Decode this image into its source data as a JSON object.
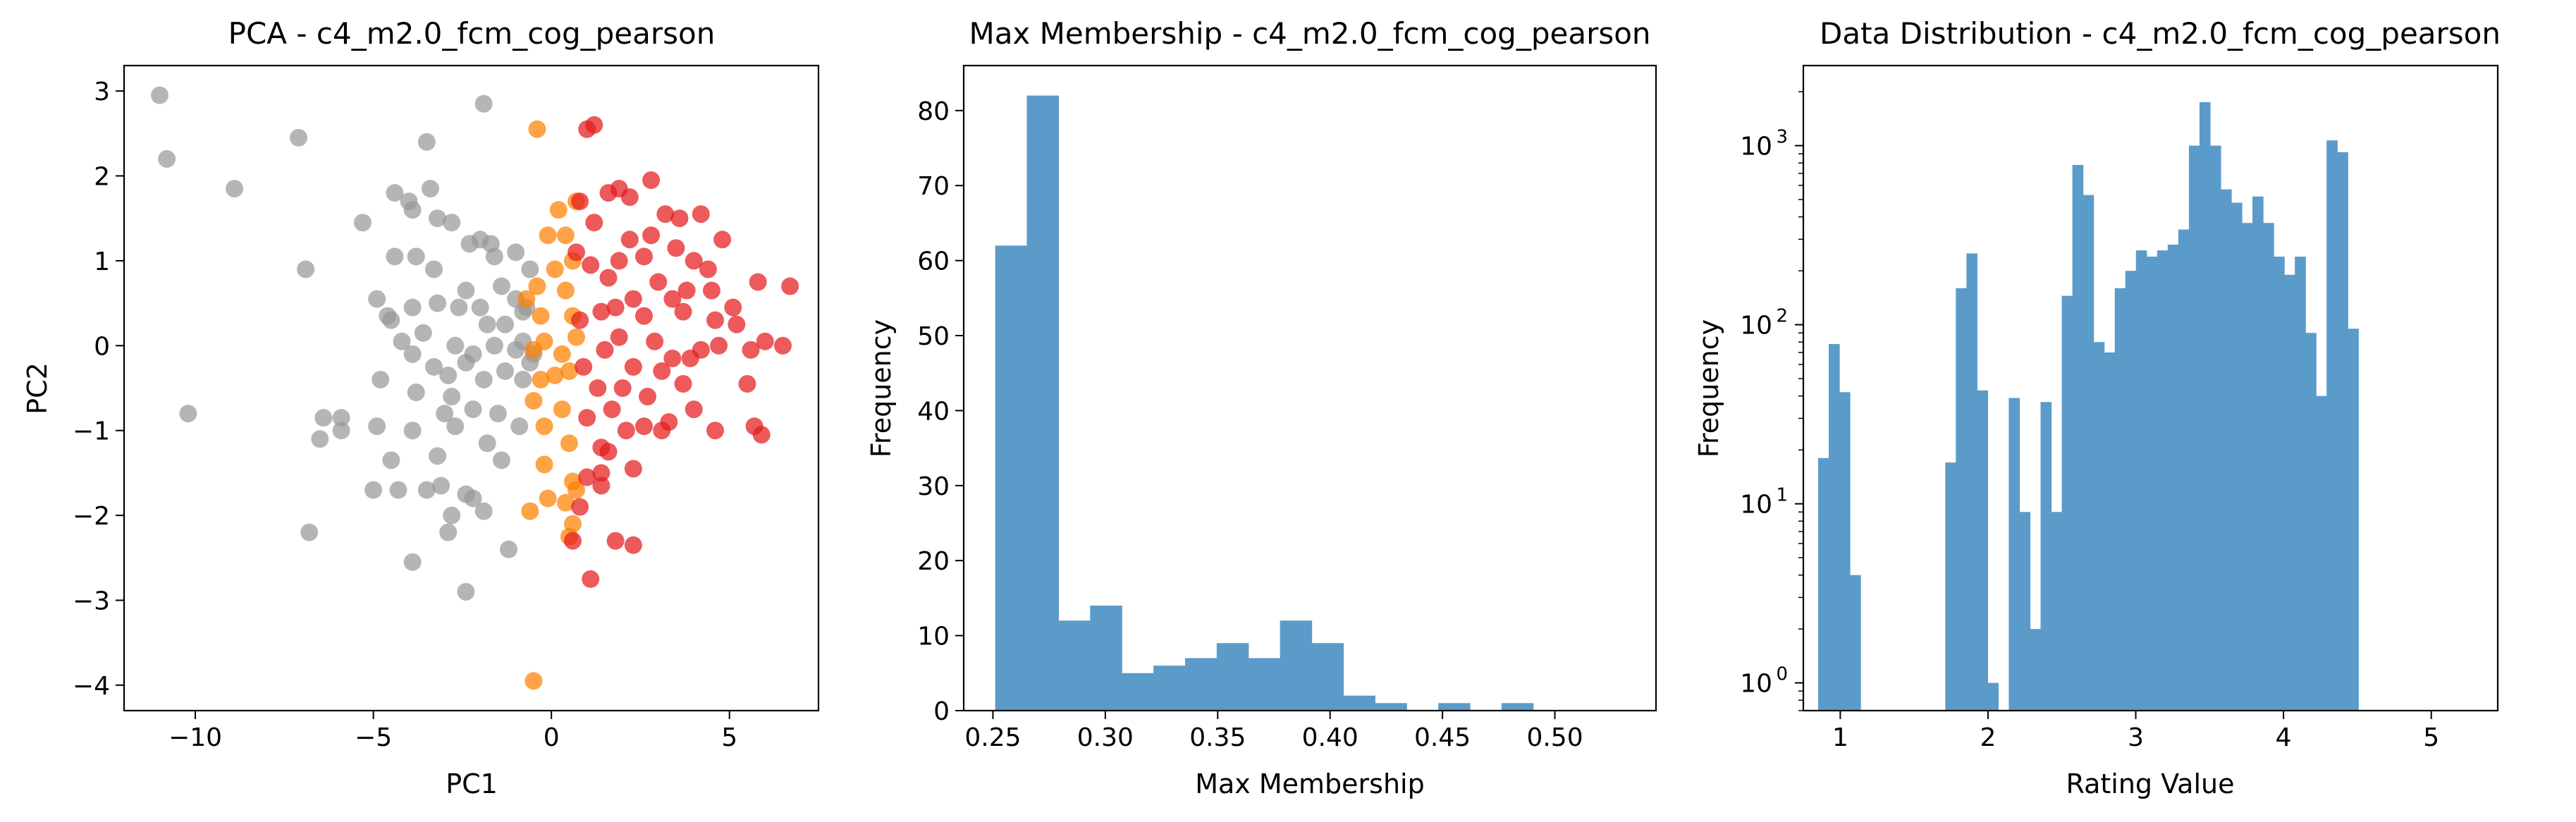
{
  "colors": {
    "cluster_red": "#e41a1c",
    "cluster_orange": "#ff7f00",
    "cluster_gray": "#999999",
    "bar_blue": "#5b9bc9",
    "axis": "#000000"
  },
  "chart_data": [
    {
      "type": "scatter",
      "title": "PCA - c4_m2.0_fcm_cog_pearson",
      "xlabel": "PC1",
      "ylabel": "PC2",
      "xlim": [
        -12,
        7.5
      ],
      "ylim": [
        -4.3,
        3.3
      ],
      "xticks": [
        -10,
        -5,
        0,
        5
      ],
      "yticks": [
        -4,
        -3,
        -2,
        -1,
        0,
        1,
        2,
        3
      ],
      "series": [
        {
          "color": "#e41a1c",
          "points": [
            [
              1.2,
              2.6
            ],
            [
              1.0,
              2.55
            ],
            [
              2.8,
              1.95
            ],
            [
              2.2,
              1.75
            ],
            [
              0.8,
              1.7
            ],
            [
              1.6,
              1.8
            ],
            [
              1.9,
              1.85
            ],
            [
              4.8,
              1.25
            ],
            [
              3.2,
              1.55
            ],
            [
              3.6,
              1.5
            ],
            [
              4.2,
              1.55
            ],
            [
              1.2,
              1.45
            ],
            [
              2.2,
              1.25
            ],
            [
              3.5,
              1.15
            ],
            [
              4.0,
              1.0
            ],
            [
              2.6,
              1.05
            ],
            [
              0.7,
              1.1
            ],
            [
              1.9,
              1.0
            ],
            [
              2.8,
              1.3
            ],
            [
              1.6,
              0.8
            ],
            [
              1.1,
              0.95
            ],
            [
              3.0,
              0.75
            ],
            [
              4.4,
              0.9
            ],
            [
              3.8,
              0.65
            ],
            [
              5.8,
              0.75
            ],
            [
              6.7,
              0.7
            ],
            [
              1.8,
              0.45
            ],
            [
              2.3,
              0.55
            ],
            [
              3.4,
              0.55
            ],
            [
              4.5,
              0.65
            ],
            [
              5.1,
              0.45
            ],
            [
              1.4,
              0.4
            ],
            [
              2.6,
              0.35
            ],
            [
              3.7,
              0.4
            ],
            [
              4.6,
              0.3
            ],
            [
              5.2,
              0.25
            ],
            [
              6.0,
              0.05
            ],
            [
              0.8,
              0.3
            ],
            [
              1.9,
              0.1
            ],
            [
              2.9,
              0.05
            ],
            [
              3.4,
              -0.15
            ],
            [
              4.2,
              -0.05
            ],
            [
              5.6,
              -0.05
            ],
            [
              6.5,
              0.0
            ],
            [
              1.5,
              -0.05
            ],
            [
              2.3,
              -0.25
            ],
            [
              3.1,
              -0.3
            ],
            [
              3.9,
              -0.15
            ],
            [
              4.7,
              0.0
            ],
            [
              0.9,
              -0.25
            ],
            [
              1.3,
              -0.5
            ],
            [
              2.0,
              -0.5
            ],
            [
              2.7,
              -0.6
            ],
            [
              3.7,
              -0.45
            ],
            [
              5.5,
              -0.45
            ],
            [
              1.7,
              -0.75
            ],
            [
              2.6,
              -0.95
            ],
            [
              3.3,
              -0.9
            ],
            [
              4.0,
              -0.75
            ],
            [
              4.6,
              -1.0
            ],
            [
              5.7,
              -0.95
            ],
            [
              5.9,
              -1.05
            ],
            [
              1.0,
              -0.85
            ],
            [
              2.1,
              -1.0
            ],
            [
              3.1,
              -1.0
            ],
            [
              1.4,
              -1.2
            ],
            [
              2.3,
              -1.45
            ],
            [
              1.6,
              -1.25
            ],
            [
              1.0,
              -1.55
            ],
            [
              1.4,
              -1.5
            ],
            [
              0.8,
              -1.9
            ],
            [
              1.4,
              -1.65
            ],
            [
              0.6,
              -2.3
            ],
            [
              1.8,
              -2.3
            ],
            [
              2.3,
              -2.35
            ],
            [
              1.1,
              -2.75
            ]
          ]
        },
        {
          "color": "#ff7f00",
          "points": [
            [
              -0.4,
              2.55
            ],
            [
              0.2,
              1.6
            ],
            [
              0.7,
              1.7
            ],
            [
              -0.1,
              1.3
            ],
            [
              0.4,
              1.3
            ],
            [
              0.1,
              0.9
            ],
            [
              0.6,
              1.0
            ],
            [
              -0.4,
              0.7
            ],
            [
              0.4,
              0.65
            ],
            [
              -0.7,
              0.55
            ],
            [
              -0.3,
              0.35
            ],
            [
              0.6,
              0.35
            ],
            [
              -0.2,
              0.05
            ],
            [
              0.7,
              0.1
            ],
            [
              -0.5,
              -0.05
            ],
            [
              0.3,
              -0.1
            ],
            [
              -0.3,
              -0.4
            ],
            [
              0.1,
              -0.35
            ],
            [
              0.5,
              -0.3
            ],
            [
              -0.5,
              -0.65
            ],
            [
              0.3,
              -0.75
            ],
            [
              -0.2,
              -0.95
            ],
            [
              0.5,
              -1.15
            ],
            [
              -0.2,
              -1.4
            ],
            [
              0.6,
              -1.6
            ],
            [
              -0.1,
              -1.8
            ],
            [
              0.4,
              -1.85
            ],
            [
              0.7,
              -1.7
            ],
            [
              -0.6,
              -1.95
            ],
            [
              0.6,
              -2.1
            ],
            [
              0.5,
              -2.25
            ],
            [
              -0.5,
              -3.95
            ]
          ]
        },
        {
          "color": "#999999",
          "points": [
            [
              -11.0,
              2.95
            ],
            [
              -10.8,
              2.2
            ],
            [
              -8.9,
              1.85
            ],
            [
              -7.1,
              2.45
            ],
            [
              -6.9,
              0.9
            ],
            [
              -5.3,
              1.45
            ],
            [
              -4.4,
              1.8
            ],
            [
              -3.5,
              2.4
            ],
            [
              -1.9,
              2.85
            ],
            [
              -3.4,
              1.85
            ],
            [
              -4.0,
              1.7
            ],
            [
              -3.9,
              1.6
            ],
            [
              -3.2,
              1.5
            ],
            [
              -2.8,
              1.45
            ],
            [
              -2.3,
              1.2
            ],
            [
              -2.0,
              1.25
            ],
            [
              -1.7,
              1.2
            ],
            [
              -1.6,
              1.05
            ],
            [
              -1.0,
              1.1
            ],
            [
              -0.6,
              0.9
            ],
            [
              -4.4,
              1.05
            ],
            [
              -3.8,
              1.05
            ],
            [
              -3.3,
              0.9
            ],
            [
              -4.9,
              0.55
            ],
            [
              -2.6,
              0.45
            ],
            [
              -2.0,
              0.45
            ],
            [
              -1.4,
              0.7
            ],
            [
              -1.0,
              0.55
            ],
            [
              -0.8,
              0.4
            ],
            [
              -4.6,
              0.35
            ],
            [
              -3.9,
              0.45
            ],
            [
              -3.2,
              0.5
            ],
            [
              -2.4,
              0.65
            ],
            [
              -1.8,
              0.25
            ],
            [
              -1.3,
              0.25
            ],
            [
              -0.7,
              0.45
            ],
            [
              -4.5,
              0.3
            ],
            [
              -3.6,
              0.15
            ],
            [
              -2.7,
              0.0
            ],
            [
              -2.2,
              -0.1
            ],
            [
              -1.6,
              0.0
            ],
            [
              -1.0,
              -0.05
            ],
            [
              -0.8,
              0.05
            ],
            [
              -0.5,
              -0.1
            ],
            [
              -4.2,
              0.05
            ],
            [
              -3.9,
              -0.1
            ],
            [
              -3.3,
              -0.25
            ],
            [
              -2.9,
              -0.35
            ],
            [
              -2.4,
              -0.2
            ],
            [
              -1.9,
              -0.4
            ],
            [
              -1.3,
              -0.3
            ],
            [
              -0.8,
              -0.4
            ],
            [
              -0.6,
              -0.2
            ],
            [
              -4.8,
              -0.4
            ],
            [
              -3.8,
              -0.55
            ],
            [
              -2.8,
              -0.6
            ],
            [
              -2.2,
              -0.75
            ],
            [
              -1.5,
              -0.8
            ],
            [
              -10.2,
              -0.8
            ],
            [
              -6.4,
              -0.85
            ],
            [
              -5.9,
              -0.85
            ],
            [
              -5.9,
              -1.0
            ],
            [
              -6.5,
              -1.1
            ],
            [
              -4.9,
              -0.95
            ],
            [
              -3.9,
              -1.0
            ],
            [
              -3.0,
              -0.8
            ],
            [
              -2.7,
              -0.95
            ],
            [
              -1.8,
              -1.15
            ],
            [
              -0.9,
              -0.95
            ],
            [
              -4.5,
              -1.35
            ],
            [
              -3.2,
              -1.3
            ],
            [
              -1.4,
              -1.35
            ],
            [
              -5.0,
              -1.7
            ],
            [
              -4.3,
              -1.7
            ],
            [
              -3.5,
              -1.7
            ],
            [
              -3.1,
              -1.65
            ],
            [
              -2.4,
              -1.75
            ],
            [
              -2.2,
              -1.8
            ],
            [
              -2.8,
              -2.0
            ],
            [
              -1.9,
              -1.95
            ],
            [
              -6.8,
              -2.2
            ],
            [
              -2.9,
              -2.2
            ],
            [
              -3.9,
              -2.55
            ],
            [
              -1.2,
              -2.4
            ],
            [
              -2.4,
              -2.9
            ]
          ]
        }
      ]
    },
    {
      "type": "bar",
      "title": "Max Membership - c4_m2.0_fcm_cog_pearson",
      "xlabel": "Max Membership",
      "ylabel": "Frequency",
      "xlim": [
        0.237,
        0.545
      ],
      "ylim": [
        0,
        86
      ],
      "xticks": [
        "0.25",
        "0.30",
        "0.35",
        "0.40",
        "0.45",
        "0.50"
      ],
      "xtick_values": [
        0.25,
        0.3,
        0.35,
        0.4,
        0.45,
        0.5
      ],
      "yticks": [
        0,
        10,
        20,
        30,
        40,
        50,
        60,
        70,
        80
      ],
      "bin_start": 0.251,
      "bin_width": 0.01408,
      "values": [
        62,
        82,
        12,
        14,
        5,
        6,
        7,
        9,
        7,
        12,
        9,
        2,
        1,
        0,
        1,
        0,
        1
      ]
    },
    {
      "type": "bar",
      "title": "Data Distribution - c4_m2.0_fcm_cog_pearson",
      "xlabel": "Rating Value",
      "ylabel": "Frequency",
      "yscale": "log",
      "xlim": [
        0.75,
        5.45
      ],
      "ylim": [
        0.7,
        2800
      ],
      "xticks": [
        "1",
        "2",
        "3",
        "4",
        "5"
      ],
      "xtick_values": [
        1,
        2,
        3,
        4,
        5
      ],
      "yticks": [
        1,
        10,
        100,
        1000
      ],
      "ytick_labels": [
        "10",
        "10",
        "10",
        "10"
      ],
      "ytick_exponents": [
        "0",
        "1",
        "2",
        "3"
      ],
      "bin_start": 0.85,
      "bin_width": 0.0717,
      "values": [
        18,
        78,
        42,
        4,
        0,
        0,
        0,
        0,
        0,
        0,
        0,
        0,
        17,
        160,
        250,
        43,
        1,
        0,
        39,
        9,
        2,
        37,
        9,
        145,
        780,
        530,
        80,
        70,
        160,
        200,
        260,
        240,
        260,
        280,
        340,
        1000,
        1750,
        1000,
        570,
        480,
        370,
        520,
        370,
        240,
        190,
        240,
        90,
        40,
        1070,
        920,
        95
      ]
    }
  ]
}
